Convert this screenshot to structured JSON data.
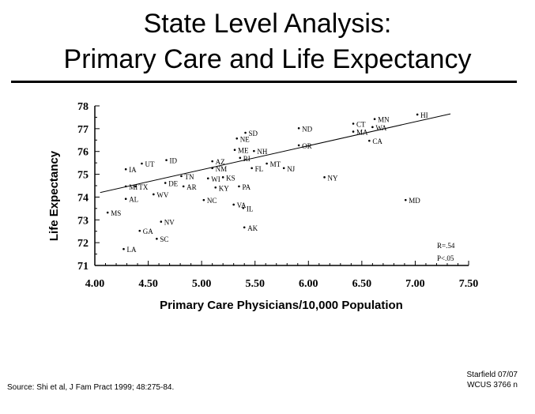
{
  "title_line1": "State Level Analysis:",
  "title_line2": "Primary Care and Life Expectancy",
  "footer": {
    "source": "Source: Shi et al, J Fam Pract 1999; 48:275-84.",
    "credit_line1": "Starfield 07/07",
    "credit_line2": "WCUS 3766 n"
  },
  "chart_data": {
    "type": "scatter",
    "xlabel": "Primary Care Physicians/10,000 Population",
    "ylabel": "Life Expectancy",
    "xlim": [
      4.0,
      7.5
    ],
    "ylim": [
      71,
      78
    ],
    "xticks": [
      "4.00",
      "4.50",
      "5.00",
      "5.50",
      "6.00",
      "6.50",
      "7.00",
      "7.50"
    ],
    "yticks": [
      "71",
      "72",
      "73",
      "74",
      "75",
      "76",
      "77",
      "78"
    ],
    "grid": false,
    "trendline": {
      "x": [
        4.05,
        7.33
      ],
      "y": [
        74.2,
        77.65
      ]
    },
    "stats": {
      "r": "R=.54",
      "p": "P<.05"
    },
    "points": [
      {
        "label": "HI",
        "x": 7.02,
        "y": 77.62
      },
      {
        "label": "CT",
        "x": 6.42,
        "y": 77.22
      },
      {
        "label": "MN",
        "x": 6.62,
        "y": 77.42
      },
      {
        "label": "MA",
        "x": 6.42,
        "y": 76.87
      },
      {
        "label": "WA",
        "x": 6.6,
        "y": 77.07
      },
      {
        "label": "CA",
        "x": 6.57,
        "y": 76.47
      },
      {
        "label": "ND",
        "x": 5.91,
        "y": 77.02
      },
      {
        "label": "OR",
        "x": 5.91,
        "y": 76.27
      },
      {
        "label": "NE",
        "x": 5.33,
        "y": 76.57
      },
      {
        "label": "SD",
        "x": 5.41,
        "y": 76.82
      },
      {
        "label": "ME",
        "x": 5.31,
        "y": 76.07
      },
      {
        "label": "NH",
        "x": 5.49,
        "y": 76.02
      },
      {
        "label": "RI",
        "x": 5.36,
        "y": 75.72
      },
      {
        "label": "AZ",
        "x": 5.1,
        "y": 75.57
      },
      {
        "label": "NM",
        "x": 5.1,
        "y": 75.27
      },
      {
        "label": "MT",
        "x": 5.61,
        "y": 75.47
      },
      {
        "label": "NJ",
        "x": 5.77,
        "y": 75.27
      },
      {
        "label": "FL",
        "x": 5.47,
        "y": 75.27
      },
      {
        "label": "ID",
        "x": 4.67,
        "y": 75.62
      },
      {
        "label": "IA",
        "x": 4.29,
        "y": 75.22
      },
      {
        "label": "UT",
        "x": 4.44,
        "y": 75.47
      },
      {
        "label": "TN",
        "x": 4.81,
        "y": 74.92
      },
      {
        "label": "WI",
        "x": 5.06,
        "y": 74.82
      },
      {
        "label": "KS",
        "x": 5.2,
        "y": 74.87
      },
      {
        "label": "NY",
        "x": 6.15,
        "y": 74.87
      },
      {
        "label": "TX",
        "x": 4.38,
        "y": 74.47
      },
      {
        "label": "MI",
        "x": 4.29,
        "y": 74.47
      },
      {
        "label": "AR",
        "x": 4.83,
        "y": 74.47
      },
      {
        "label": "PA",
        "x": 5.35,
        "y": 74.47
      },
      {
        "label": "DE",
        "x": 4.66,
        "y": 74.62
      },
      {
        "label": "WV",
        "x": 4.55,
        "y": 74.12
      },
      {
        "label": "KY",
        "x": 5.13,
        "y": 74.42
      },
      {
        "label": "AL",
        "x": 4.29,
        "y": 73.92
      },
      {
        "label": "NC",
        "x": 5.02,
        "y": 73.87
      },
      {
        "label": "VA",
        "x": 5.3,
        "y": 73.67
      },
      {
        "label": "IL",
        "x": 5.39,
        "y": 73.52
      },
      {
        "label": "MD",
        "x": 6.91,
        "y": 73.87
      },
      {
        "label": "MS",
        "x": 4.12,
        "y": 73.32
      },
      {
        "label": "NV",
        "x": 4.62,
        "y": 72.92
      },
      {
        "label": "GA",
        "x": 4.42,
        "y": 72.52
      },
      {
        "label": "AK",
        "x": 5.4,
        "y": 72.67
      },
      {
        "label": "SC",
        "x": 4.58,
        "y": 72.17
      },
      {
        "label": "LA",
        "x": 4.27,
        "y": 71.72
      }
    ]
  }
}
